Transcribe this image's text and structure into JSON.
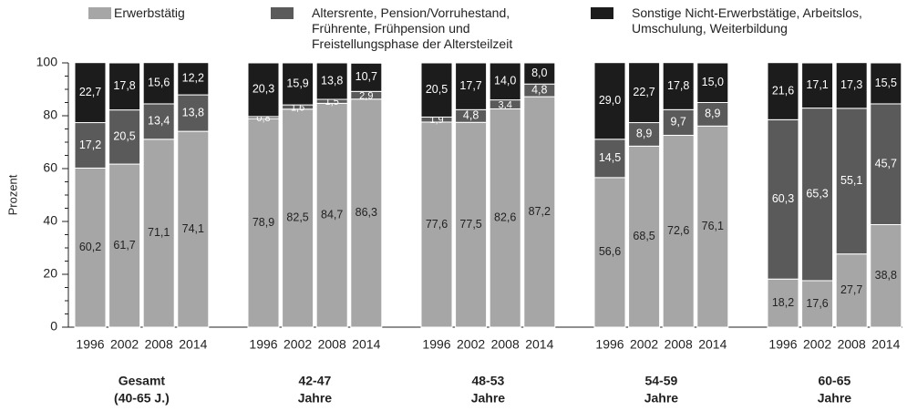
{
  "chart_data": {
    "type": "bar",
    "stacked": true,
    "ylabel": "Prozent",
    "ylim": [
      0,
      100
    ],
    "yticks": [
      0,
      20,
      40,
      60,
      80,
      100
    ],
    "yminorticks": [
      5,
      10,
      15,
      25,
      30,
      35,
      45,
      50,
      55,
      65,
      70,
      75,
      85,
      90,
      95
    ],
    "groups": [
      [
        "Gesamt",
        "(40-65 J.)"
      ],
      [
        "42-47",
        "Jahre"
      ],
      [
        "48-53",
        "Jahre"
      ],
      [
        "54-59",
        "Jahre"
      ],
      [
        "60-65",
        "Jahre"
      ]
    ],
    "categories": [
      "1996",
      "2002",
      "2008",
      "2014",
      "1996",
      "2002",
      "2008",
      "2014",
      "1996",
      "2002",
      "2008",
      "2014",
      "1996",
      "2002",
      "2008",
      "2014",
      "1996",
      "2002",
      "2008",
      "2014"
    ],
    "series": [
      {
        "name": "Erwerbstätig",
        "color": "#a6a6a6",
        "label_color": "#222222",
        "values": [
          60.2,
          61.7,
          71.1,
          74.1,
          78.9,
          82.5,
          84.7,
          86.3,
          77.6,
          77.5,
          82.6,
          87.2,
          56.6,
          68.5,
          72.6,
          76.1,
          18.2,
          17.6,
          27.7,
          38.8
        ],
        "value_labels": [
          "60,2",
          "61,7",
          "71,1",
          "74,1",
          "78,9",
          "82,5",
          "84,7",
          "86,3",
          "77,6",
          "77,5",
          "82,6",
          "87,2",
          "56,6",
          "68,5",
          "72,6",
          "76,1",
          "18,2",
          "17,6",
          "27,7",
          "38,8"
        ]
      },
      {
        "name": "Altersrente, Pension/Vorruhestand, Frührente, Frühpension und Freistellungsphase der Altersteilzeit",
        "color": "#5a5a5a",
        "label_color": "#ffffff",
        "values": [
          17.2,
          20.5,
          13.4,
          13.8,
          0.8,
          1.6,
          1.5,
          2.9,
          1.9,
          4.8,
          3.4,
          4.8,
          14.5,
          8.9,
          9.7,
          8.9,
          60.3,
          65.3,
          55.1,
          45.7
        ],
        "value_labels": [
          "17,2",
          "20,5",
          "13,4",
          "13,8",
          "0,8",
          "1,6",
          "1,5",
          "2,9",
          "1,9",
          "4,8",
          "3,4",
          "4,8",
          "14,5",
          "8,9",
          "9,7",
          "8,9",
          "60,3",
          "65,3",
          "55,1",
          "45,7"
        ]
      },
      {
        "name": "Sonstige Nicht-Erwerbstätige, Arbeitslos, Umschulung, Weiterbildung",
        "color": "#1c1c1c",
        "label_color": "#ffffff",
        "values": [
          22.7,
          17.8,
          15.6,
          12.2,
          20.3,
          15.9,
          13.8,
          10.7,
          20.5,
          17.7,
          14.0,
          8.0,
          29.0,
          22.7,
          17.8,
          15.0,
          21.6,
          17.1,
          17.3,
          15.5
        ],
        "value_labels": [
          "22,7",
          "17,8",
          "15,6",
          "12,2",
          "20,3",
          "15,9",
          "13,8",
          "10,7",
          "20,5",
          "17,7",
          "14,0",
          "8,0",
          "29,0",
          "22,7",
          "17,8",
          "15,0",
          "21,6",
          "17,1",
          "17,3",
          "15,5"
        ]
      }
    ]
  }
}
